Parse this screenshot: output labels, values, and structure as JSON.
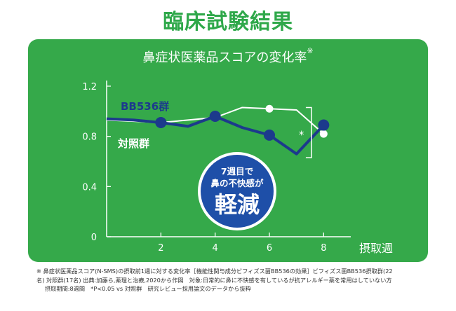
{
  "page_title": "臨床試験結果",
  "colors": {
    "panel_green": "#35a94a",
    "title_green": "#2fa84a",
    "bb536_line": "#1c3a8c",
    "control_line": "#ffffff",
    "callout_circle": "#1e4fa8"
  },
  "chart_data": {
    "type": "line",
    "title": "鼻症状医薬品スコアの変化率",
    "title_mark": "※",
    "xlabel": "摂取週",
    "ylabel": "",
    "xlim": [
      0,
      9
    ],
    "ylim": [
      0,
      1.2
    ],
    "x_ticks": [
      2,
      4,
      6,
      8
    ],
    "y_ticks": [
      0,
      0.4,
      0.8,
      1.2
    ],
    "y_tick_labels": [
      "0",
      "0.4",
      "0.8",
      "1.2"
    ],
    "grid": false,
    "series": [
      {
        "name": "BB536群",
        "color": "#1c3a8c",
        "x": [
          0,
          1,
          2,
          3,
          4,
          5,
          6,
          7,
          8
        ],
        "y": [
          0.94,
          0.93,
          0.91,
          0.88,
          0.96,
          0.87,
          0.81,
          0.66,
          0.89
        ],
        "marker_x": [
          2,
          4,
          6,
          8
        ]
      },
      {
        "name": "対照群",
        "color": "#ffffff",
        "x": [
          0,
          1,
          2,
          3,
          4,
          5,
          6,
          7,
          8
        ],
        "y": [
          0.93,
          0.92,
          0.91,
          0.93,
          0.95,
          1.03,
          1.02,
          1.01,
          0.82
        ],
        "marker_x": [
          6,
          8
        ]
      }
    ],
    "annotation": {
      "significance": "*",
      "callout_line1": "7週目で",
      "callout_line2": "鼻の不快感が",
      "callout_big": "軽減"
    }
  },
  "footnote": {
    "line1": "※ 鼻症状医薬品スコア(N-SMS)の摂取前1週に対する変化率［機能性関与成分ビフィズス菌BB536の効果］ビフィズス菌BB536摂取群(22",
    "line2": "名) 対照群(17名) 出典:加藤ら,薬理と治療,2020から作図　対象:日常的に鼻に不快感を有しているが抗アレルギー薬を常用はしていない方",
    "line3": "摂取期間:8週間　*P<0.05 vs 対照群　研究レビュー採用論文のデータから抜粋"
  }
}
